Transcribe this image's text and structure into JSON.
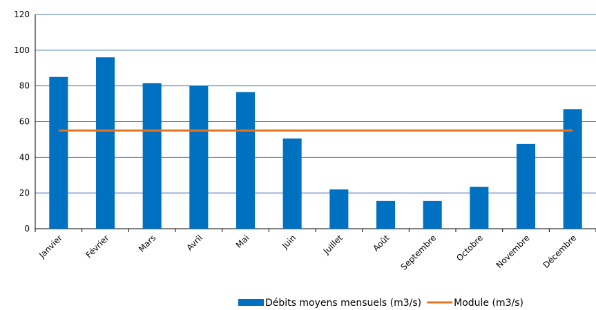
{
  "chart_data": {
    "type": "bar",
    "categories": [
      "Janvier",
      "Février",
      "Mars",
      "Avril",
      "Mai",
      "Juin",
      "Juillet",
      "Août",
      "Septembre",
      "Octobre",
      "Novembre",
      "Décembre"
    ],
    "series": [
      {
        "name": "Débits moyens mensuels (m3/s)",
        "type": "bar",
        "color": "#0070c0",
        "values": [
          85,
          96,
          81.5,
          80,
          76.5,
          50.5,
          22,
          15.5,
          15.5,
          23.5,
          47.5,
          67
        ]
      },
      {
        "name": "Module (m3/s)",
        "type": "line",
        "color": "#e8731f",
        "values": [
          55,
          55,
          55,
          55,
          55,
          55,
          55,
          55,
          55,
          55,
          55,
          55
        ]
      }
    ],
    "ylim": [
      0,
      120
    ],
    "yticks": [
      0,
      20,
      40,
      60,
      80,
      100,
      120
    ],
    "grid": true,
    "legend": "bottom"
  }
}
